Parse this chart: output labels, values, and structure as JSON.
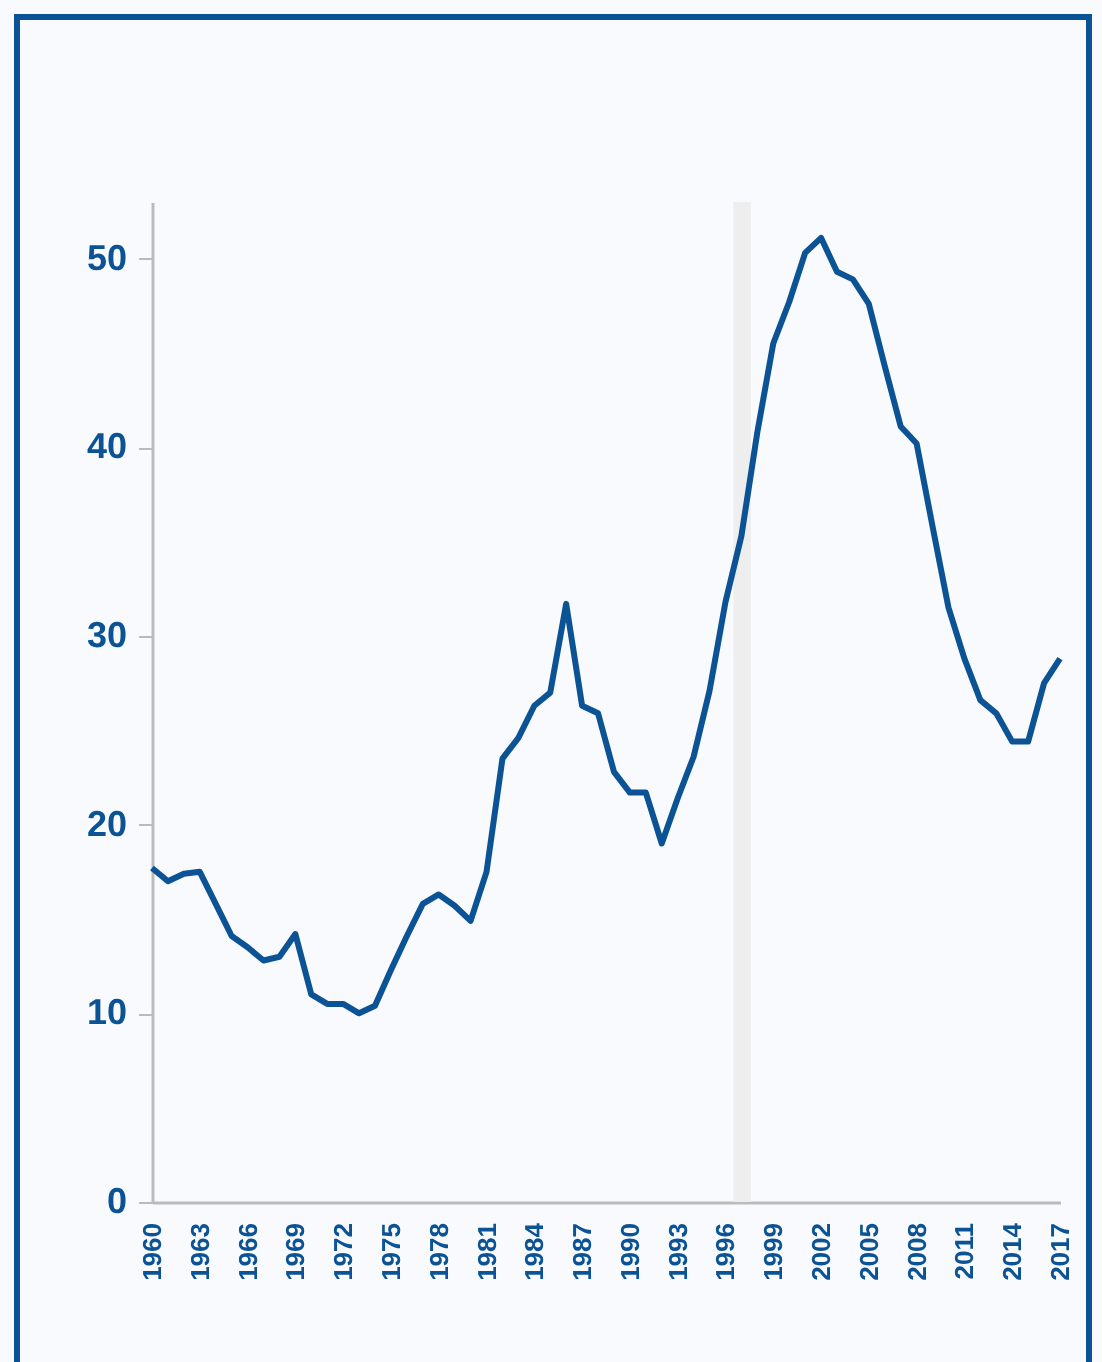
{
  "chart_data": {
    "type": "line",
    "x": [
      1960,
      1961,
      1962,
      1963,
      1964,
      1965,
      1966,
      1967,
      1968,
      1969,
      1970,
      1971,
      1972,
      1973,
      1974,
      1975,
      1976,
      1977,
      1978,
      1979,
      1980,
      1981,
      1982,
      1983,
      1984,
      1985,
      1986,
      1987,
      1988,
      1989,
      1990,
      1991,
      1992,
      1993,
      1994,
      1995,
      1996,
      1997,
      1998,
      1999,
      2000,
      2001,
      2002,
      2003,
      2004,
      2005,
      2006,
      2007,
      2008,
      2009,
      2010,
      2011,
      2012,
      2013,
      2014,
      2015,
      2016,
      2017
    ],
    "series": [
      {
        "color": "#0b5394",
        "values": [
          17.7,
          17.0,
          17.4,
          17.5,
          15.8,
          14.1,
          13.5,
          12.8,
          13.0,
          14.2,
          11.0,
          10.5,
          10.5,
          10.0,
          10.4,
          12.3,
          14.1,
          15.8,
          16.3,
          15.7,
          14.9,
          17.5,
          23.5,
          24.6,
          26.3,
          27.0,
          31.7,
          26.3,
          25.9,
          22.8,
          21.7,
          21.7,
          19.0,
          21.4,
          23.6,
          27.1,
          31.8,
          35.3,
          40.8,
          45.5,
          47.7,
          50.3,
          51.1,
          49.3,
          48.9,
          47.6,
          44.3,
          41.1,
          40.2,
          35.8,
          31.5,
          28.8,
          26.6,
          25.9,
          24.4,
          24.4,
          27.5,
          28.8
        ]
      }
    ],
    "xlim": [
      1960,
      2017
    ],
    "xticks": [
      1960,
      1963,
      1966,
      1969,
      1972,
      1975,
      1978,
      1981,
      1984,
      1987,
      1990,
      1993,
      1996,
      1999,
      2002,
      2005,
      2008,
      2011,
      2014,
      2017
    ],
    "ylim": [
      0,
      53
    ],
    "yticks": [
      0,
      10,
      20,
      30,
      40,
      50
    ],
    "bands": [
      {
        "axis": "x",
        "from": 1996.5,
        "to": 1997.6,
        "color": "#eeeeee"
      }
    ],
    "grid": false,
    "legend": false
  }
}
